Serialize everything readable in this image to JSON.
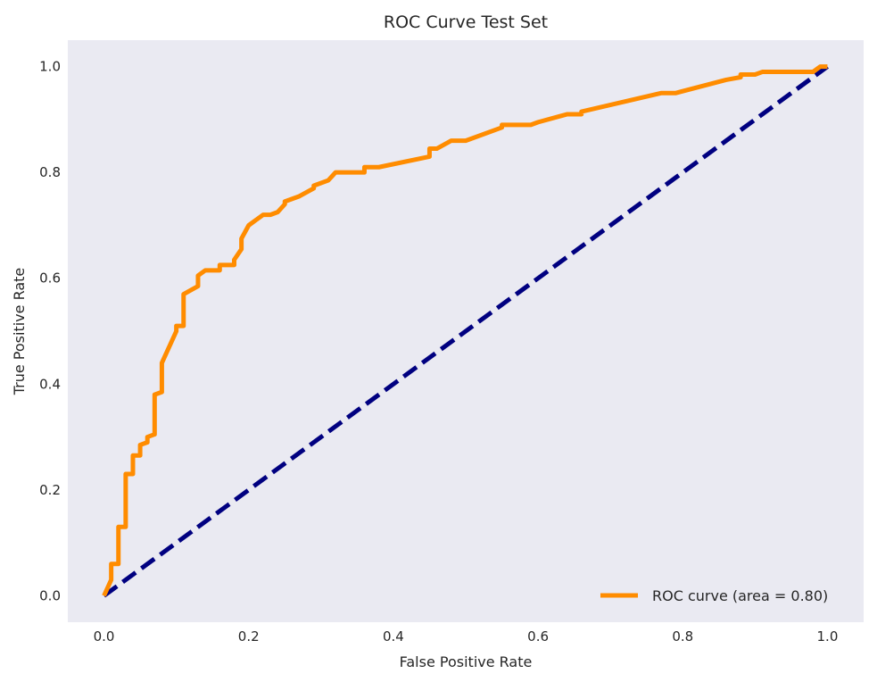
{
  "chart_data": {
    "type": "line",
    "title": "ROC Curve Test Set",
    "xlabel": "False Positive Rate",
    "ylabel": "True Positive Rate",
    "xlim": [
      -0.05,
      1.05
    ],
    "ylim": [
      -0.05,
      1.05
    ],
    "xticks": [
      0.0,
      0.2,
      0.4,
      0.6,
      0.8,
      1.0
    ],
    "yticks": [
      0.0,
      0.2,
      0.4,
      0.6,
      0.8,
      1.0
    ],
    "xtick_labels": [
      "0.0",
      "0.2",
      "0.4",
      "0.6",
      "0.8",
      "1.0"
    ],
    "ytick_labels": [
      "0.0",
      "0.2",
      "0.4",
      "0.6",
      "0.8",
      "1.0"
    ],
    "grid": false,
    "background_color": "#eaeaf2",
    "legend": {
      "position": "lower-right",
      "entries": [
        "ROC curve (area = 0.80)"
      ]
    },
    "series": [
      {
        "name": "ROC curve (area = 0.80)",
        "color": "#ff8c00",
        "style": "solid",
        "x": [
          0.0,
          0.01,
          0.01,
          0.02,
          0.02,
          0.03,
          0.03,
          0.04,
          0.04,
          0.05,
          0.05,
          0.06,
          0.06,
          0.07,
          0.07,
          0.08,
          0.08,
          0.1,
          0.1,
          0.11,
          0.11,
          0.13,
          0.13,
          0.14,
          0.16,
          0.16,
          0.18,
          0.18,
          0.19,
          0.19,
          0.2,
          0.21,
          0.22,
          0.23,
          0.24,
          0.25,
          0.25,
          0.27,
          0.29,
          0.29,
          0.31,
          0.32,
          0.36,
          0.36,
          0.38,
          0.45,
          0.45,
          0.46,
          0.48,
          0.5,
          0.55,
          0.55,
          0.59,
          0.6,
          0.64,
          0.65,
          0.66,
          0.66,
          0.77,
          0.79,
          0.86,
          0.88,
          0.88,
          0.9,
          0.91,
          0.92,
          0.98,
          0.99,
          1.0
        ],
        "y": [
          0.0,
          0.03,
          0.06,
          0.06,
          0.13,
          0.13,
          0.23,
          0.23,
          0.265,
          0.265,
          0.285,
          0.29,
          0.3,
          0.305,
          0.38,
          0.385,
          0.44,
          0.5,
          0.51,
          0.51,
          0.57,
          0.585,
          0.605,
          0.615,
          0.615,
          0.625,
          0.625,
          0.635,
          0.655,
          0.675,
          0.7,
          0.71,
          0.72,
          0.72,
          0.725,
          0.74,
          0.745,
          0.755,
          0.77,
          0.775,
          0.785,
          0.8,
          0.8,
          0.81,
          0.81,
          0.83,
          0.845,
          0.845,
          0.86,
          0.86,
          0.885,
          0.89,
          0.89,
          0.895,
          0.91,
          0.91,
          0.91,
          0.915,
          0.95,
          0.95,
          0.975,
          0.98,
          0.985,
          0.985,
          0.99,
          0.99,
          0.99,
          1.0,
          1.0
        ]
      },
      {
        "color": "#000080",
        "style": "dashed",
        "x": [
          0.0,
          1.0
        ],
        "y": [
          0.0,
          1.0
        ]
      }
    ]
  }
}
